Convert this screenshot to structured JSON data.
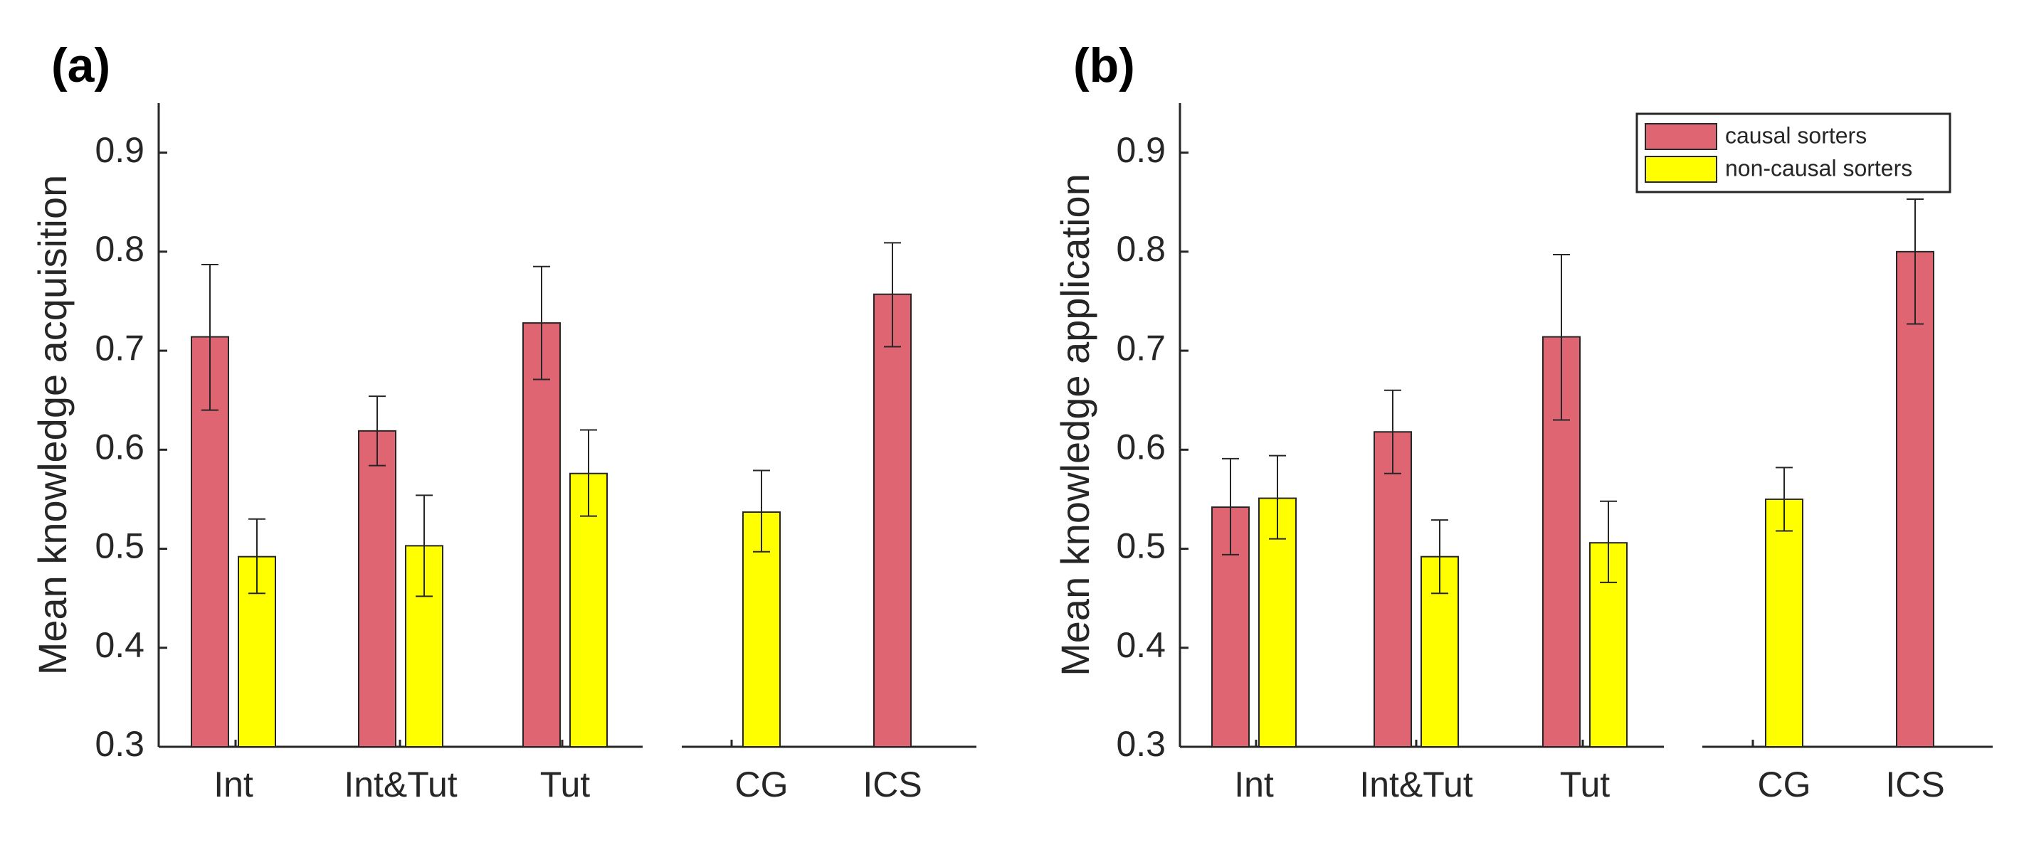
{
  "chart_data": [
    {
      "type": "bar",
      "panel_label": "(a)",
      "title": "",
      "xlabel": "",
      "ylabel": "Mean knowledge acquisition",
      "ylim": [
        0.3,
        0.95
      ],
      "yticks": [
        0.3,
        0.4,
        0.5,
        0.6,
        0.7,
        0.8,
        0.9
      ],
      "ytick_labels": [
        "0.3",
        "0.4",
        "0.5",
        "0.6",
        "0.7",
        "0.8",
        "0.9"
      ],
      "axis_groups": [
        [
          "Int",
          "Int&Tut",
          "Tut"
        ],
        [
          "CG",
          "ICS"
        ]
      ],
      "categories": [
        "Int",
        "Int&Tut",
        "Tut",
        "CG",
        "ICS"
      ],
      "series": [
        {
          "name": "causal sorters",
          "color": "#E06573",
          "values": [
            0.714,
            0.619,
            0.728,
            null,
            0.757
          ],
          "error_low": [
            0.64,
            0.584,
            0.671,
            null,
            0.704
          ],
          "error_high": [
            0.787,
            0.654,
            0.785,
            null,
            0.809
          ]
        },
        {
          "name": "non-causal sorters",
          "color": "#FFFF00",
          "values": [
            0.492,
            0.503,
            0.576,
            0.537,
            null
          ],
          "error_low": [
            0.455,
            0.452,
            0.533,
            0.497,
            null
          ],
          "error_high": [
            0.53,
            0.554,
            0.62,
            0.579,
            null
          ]
        }
      ],
      "legend": null
    },
    {
      "type": "bar",
      "panel_label": "(b)",
      "title": "",
      "xlabel": "",
      "ylabel": "Mean knowledge application",
      "ylim": [
        0.3,
        0.95
      ],
      "yticks": [
        0.3,
        0.4,
        0.5,
        0.6,
        0.7,
        0.8,
        0.9
      ],
      "ytick_labels": [
        "0.3",
        "0.4",
        "0.5",
        "0.6",
        "0.7",
        "0.8",
        "0.9"
      ],
      "axis_groups": [
        [
          "Int",
          "Int&Tut",
          "Tut"
        ],
        [
          "CG",
          "ICS"
        ]
      ],
      "categories": [
        "Int",
        "Int&Tut",
        "Tut",
        "CG",
        "ICS"
      ],
      "series": [
        {
          "name": "causal sorters",
          "color": "#E06573",
          "values": [
            0.542,
            0.618,
            0.714,
            null,
            0.8
          ],
          "error_low": [
            0.494,
            0.576,
            0.63,
            null,
            0.727
          ],
          "error_high": [
            0.591,
            0.66,
            0.797,
            null,
            0.853
          ]
        },
        {
          "name": "non-causal sorters",
          "color": "#FFFF00",
          "values": [
            0.551,
            0.492,
            0.506,
            0.55,
            null
          ],
          "error_low": [
            0.51,
            0.455,
            0.466,
            0.518,
            null
          ],
          "error_high": [
            0.594,
            0.529,
            0.548,
            0.582,
            null
          ]
        }
      ],
      "legend": {
        "position": "top-right",
        "entries": [
          "causal sorters",
          "non-causal sorters"
        ]
      }
    }
  ]
}
